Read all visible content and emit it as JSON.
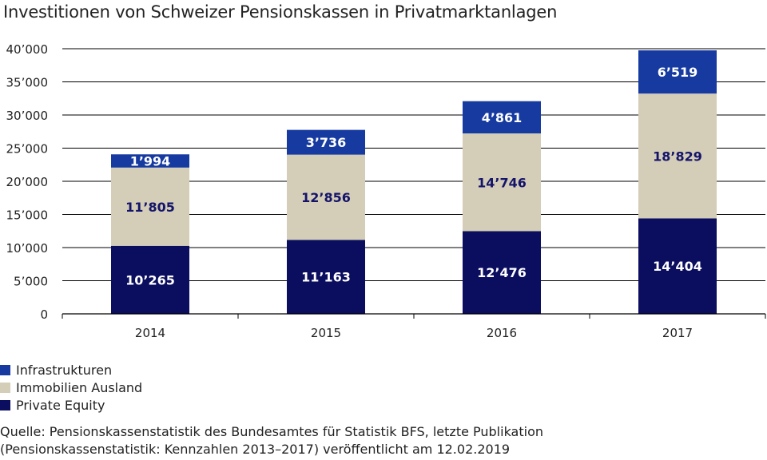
{
  "chart_data": {
    "type": "bar",
    "stacked": true,
    "title": "Investitionen von Schweizer Pensionskassen in Privatmarktanlagen",
    "xlabel": "",
    "ylabel": "",
    "ylim": [
      0,
      40000
    ],
    "yticks": [
      0,
      5000,
      10000,
      15000,
      20000,
      25000,
      30000,
      35000,
      40000
    ],
    "ytick_labels": [
      "0",
      "5’000",
      "10’000",
      "15’000",
      "20’000",
      "25’000",
      "30’000",
      "35’000",
      "40’000"
    ],
    "categories": [
      "2014",
      "2015",
      "2016",
      "2017"
    ],
    "grid": true,
    "series": [
      {
        "name": "Private Equity",
        "color": "#0b0d5f",
        "label_color": "#ffffff",
        "values": [
          10265,
          11163,
          12476,
          14404
        ],
        "labels": [
          "10’265",
          "11’163",
          "12’476",
          "14’404"
        ]
      },
      {
        "name": "Immobilien Ausland",
        "color": "#d4cdb7",
        "label_color": "#14146a",
        "values": [
          11805,
          12856,
          14746,
          18829
        ],
        "labels": [
          "11’805",
          "12’856",
          "14’746",
          "18’829"
        ]
      },
      {
        "name": "Infrastrukturen",
        "color": "#163aa0",
        "label_color": "#ffffff",
        "values": [
          1994,
          3736,
          4861,
          6519
        ],
        "labels": [
          "1’994",
          "3’736",
          "4’861",
          "6’519"
        ]
      }
    ]
  },
  "legend": {
    "items": [
      {
        "label": "Infrastrukturen",
        "color": "#163aa0"
      },
      {
        "label": "Immobilien Ausland",
        "color": "#d4cdb7"
      },
      {
        "label": "Private Equity",
        "color": "#0b0d5f"
      }
    ]
  },
  "source": {
    "line1": "Quelle: Pensionskassenstatistik des Bundesamtes für Statistik BFS, letzte Publikation",
    "line2": "(Pensionskassenstatistik: Kennzahlen 2013–2017) veröffentlicht am 12.02.2019"
  }
}
